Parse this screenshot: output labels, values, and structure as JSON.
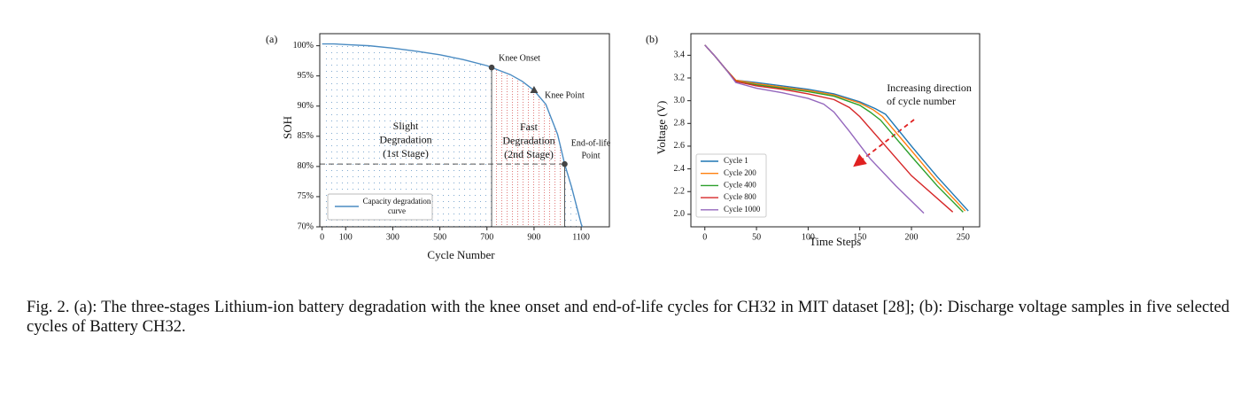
{
  "chart_data": [
    {
      "type": "line",
      "panel_label": "(a)",
      "xlabel": "Cycle Number",
      "ylabel": "SOH",
      "xlim": [
        -10,
        1220
      ],
      "ylim": [
        70,
        102
      ],
      "xticks": [
        0,
        100,
        300,
        500,
        700,
        900,
        1100
      ],
      "yticks": [
        {
          "value": 70,
          "label": "70%"
        },
        {
          "value": 75,
          "label": "75%"
        },
        {
          "value": 80,
          "label": "80%"
        },
        {
          "value": 85,
          "label": "85%"
        },
        {
          "value": 90,
          "label": "90%"
        },
        {
          "value": 95,
          "label": "95%"
        },
        {
          "value": 100,
          "label": "100%"
        }
      ],
      "series": [
        {
          "name": "Capacity degradation curve",
          "color": "#4a8bc2",
          "x": [
            0,
            50,
            100,
            200,
            300,
            400,
            500,
            600,
            700,
            720,
            800,
            850,
            900,
            950,
            1000,
            1030,
            1060,
            1080,
            1100,
            1105
          ],
          "values": [
            100.3,
            100.3,
            100.2,
            100.0,
            99.6,
            99.1,
            98.5,
            97.7,
            96.7,
            96.4,
            95.2,
            94.1,
            92.6,
            90.3,
            85.3,
            80.4,
            76.5,
            73.5,
            70.5,
            70
          ]
        }
      ],
      "points": [
        {
          "label": "Knee Onset",
          "x": 720,
          "y": 96.4,
          "marker": "circle"
        },
        {
          "label": "Knee Point",
          "x": 900,
          "y": 92.6,
          "marker": "triangle"
        },
        {
          "label": [
            "End-of-life",
            "Point"
          ],
          "x": 1030,
          "y": 80.4,
          "marker": "circle"
        }
      ],
      "annotations": [
        [
          "Slight",
          "Degradation",
          "(1st Stage)"
        ],
        [
          "Fast",
          "Degradation",
          "(2nd Stage)"
        ]
      ]
    },
    {
      "type": "line",
      "panel_label": "(b)",
      "xlabel": "Time Steps",
      "ylabel": "Voltage (V)",
      "xlim": [
        -13.5,
        266
      ],
      "ylim": [
        1.89,
        3.59
      ],
      "xticks": [
        0,
        50,
        100,
        150,
        200,
        250
      ],
      "yticks": [
        {
          "value": 2.0,
          "label": "2.0"
        },
        2.2,
        2.4,
        2.6,
        2.8,
        {
          "value": 3.0,
          "label": "3.0"
        },
        3.2,
        3.4
      ],
      "series": [
        {
          "name": "Cycle 1",
          "color": "#1f77b4",
          "x": [
            0,
            10,
            20,
            30,
            50,
            75,
            100,
            125,
            150,
            165,
            175,
            200,
            225,
            255
          ],
          "values": [
            3.49,
            3.39,
            3.28,
            3.18,
            3.16,
            3.13,
            3.1,
            3.06,
            2.99,
            2.93,
            2.88,
            2.6,
            2.33,
            2.03
          ]
        },
        {
          "name": "Cycle 200",
          "color": "#ff7f0e",
          "x": [
            0,
            10,
            20,
            30,
            50,
            75,
            100,
            125,
            150,
            163,
            172,
            200,
            225,
            252
          ],
          "values": [
            3.49,
            3.39,
            3.28,
            3.18,
            3.15,
            3.12,
            3.09,
            3.05,
            2.98,
            2.92,
            2.86,
            2.56,
            2.29,
            2.03
          ]
        },
        {
          "name": "Cycle 400",
          "color": "#2ca02c",
          "x": [
            0,
            10,
            20,
            30,
            50,
            75,
            100,
            125,
            150,
            160,
            170,
            200,
            225,
            250
          ],
          "values": [
            3.49,
            3.39,
            3.28,
            3.17,
            3.14,
            3.11,
            3.08,
            3.04,
            2.96,
            2.9,
            2.83,
            2.51,
            2.25,
            2.02
          ]
        },
        {
          "name": "Cycle 800",
          "color": "#d62728",
          "x": [
            0,
            10,
            20,
            30,
            50,
            75,
            100,
            125,
            140,
            150,
            175,
            200,
            240
          ],
          "values": [
            3.49,
            3.39,
            3.28,
            3.17,
            3.13,
            3.1,
            3.06,
            3.01,
            2.94,
            2.86,
            2.6,
            2.34,
            2.02
          ]
        },
        {
          "name": "Cycle 1000",
          "color": "#9467bd",
          "x": [
            0,
            10,
            20,
            30,
            50,
            75,
            100,
            115,
            125,
            140,
            160,
            185,
            212
          ],
          "values": [
            3.49,
            3.39,
            3.28,
            3.16,
            3.11,
            3.07,
            3.02,
            2.97,
            2.9,
            2.73,
            2.49,
            2.25,
            2.01
          ]
        }
      ],
      "annotations": [
        [
          "Increasing direction",
          "of cycle number"
        ]
      ]
    }
  ],
  "caption": "Fig. 2.  (a): The three-stages Lithium-ion battery degradation with the knee onset and end-of-life cycles for CH32 in MIT dataset [28]; (b): Discharge voltage samples in five selected cycles of Battery CH32."
}
